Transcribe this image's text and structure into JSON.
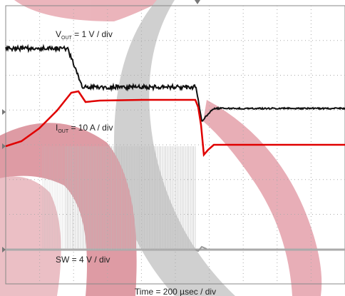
{
  "labels": {
    "vout": {
      "main": "V",
      "sub": "OUT",
      "rest": " =  1 V / div"
    },
    "iout": {
      "main": "I",
      "sub": "OUT",
      "rest": " = 10 A / div"
    },
    "sw": "SW = 4 V / div",
    "time": "Time = 200 µsec / div"
  }
}
